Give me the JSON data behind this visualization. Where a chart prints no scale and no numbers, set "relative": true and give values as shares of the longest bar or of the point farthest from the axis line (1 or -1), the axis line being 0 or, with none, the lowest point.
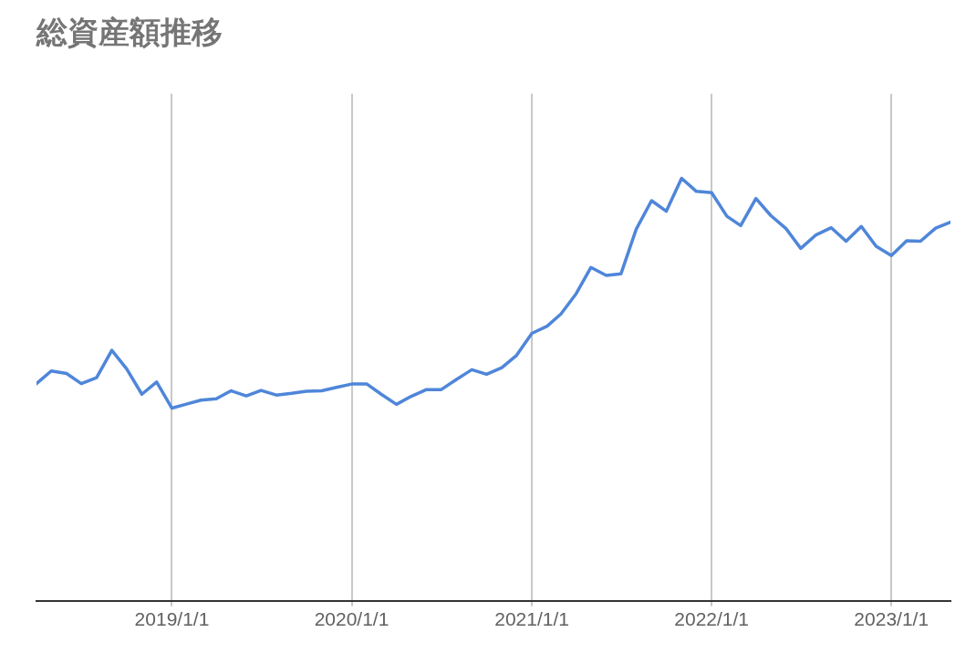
{
  "chart_data": {
    "type": "line",
    "title": "総資産額推移",
    "relative": true,
    "grid": "x",
    "legend": false,
    "marker": "none",
    "line_style": "solid",
    "x": [
      "2018-04",
      "2018-05",
      "2018-06",
      "2018-07",
      "2018-08",
      "2018-09",
      "2018-10",
      "2018-11",
      "2018-12",
      "2019-01",
      "2019-02",
      "2019-03",
      "2019-04",
      "2019-05",
      "2019-06",
      "2019-07",
      "2019-08",
      "2019-09",
      "2019-10",
      "2019-11",
      "2019-12",
      "2020-01",
      "2020-02",
      "2020-03",
      "2020-04",
      "2020-05",
      "2020-06",
      "2020-07",
      "2020-08",
      "2020-09",
      "2020-10",
      "2020-11",
      "2020-12",
      "2021-01",
      "2021-02",
      "2021-03",
      "2021-04",
      "2021-05",
      "2021-06",
      "2021-07",
      "2021-08",
      "2021-09",
      "2021-10",
      "2021-11",
      "2021-12",
      "2022-01",
      "2022-02",
      "2022-03",
      "2022-04",
      "2022-05",
      "2022-06",
      "2022-07",
      "2022-08",
      "2022-09",
      "2022-10",
      "2022-11",
      "2022-12",
      "2023-01",
      "2023-02",
      "2023-03",
      "2023-04",
      "2023-05"
    ],
    "xlim": [
      "2018-04",
      "2023-05"
    ],
    "xticks": [
      {
        "value": "2019-01-01",
        "label": "2019/1/1"
      },
      {
        "value": "2020-01-01",
        "label": "2020/1/1"
      },
      {
        "value": "2021-01-01",
        "label": "2021/1/1"
      },
      {
        "value": "2022-01-01",
        "label": "2022/1/1"
      },
      {
        "value": "2023-01-01",
        "label": "2023/1/1"
      }
    ],
    "series": [
      {
        "color": "#4f86d9",
        "values": [
          0.514,
          0.544,
          0.538,
          0.514,
          0.528,
          0.593,
          0.549,
          0.489,
          0.518,
          0.456,
          0.466,
          0.475,
          0.478,
          0.497,
          0.485,
          0.498,
          0.487,
          0.491,
          0.496,
          0.497,
          0.505,
          0.513,
          0.513,
          0.489,
          0.465,
          0.484,
          0.5,
          0.5,
          0.524,
          0.547,
          0.536,
          0.552,
          0.581,
          0.633,
          0.65,
          0.679,
          0.727,
          0.789,
          0.77,
          0.774,
          0.88,
          0.947,
          0.922,
          1,
          0.969,
          0.966,
          0.91,
          0.888,
          0.952,
          0.912,
          0.881,
          0.834,
          0.866,
          0.883,
          0.851,
          0.886,
          0.839,
          0.817,
          0.852,
          0.851,
          0.882,
          0.896
        ]
      }
    ]
  }
}
